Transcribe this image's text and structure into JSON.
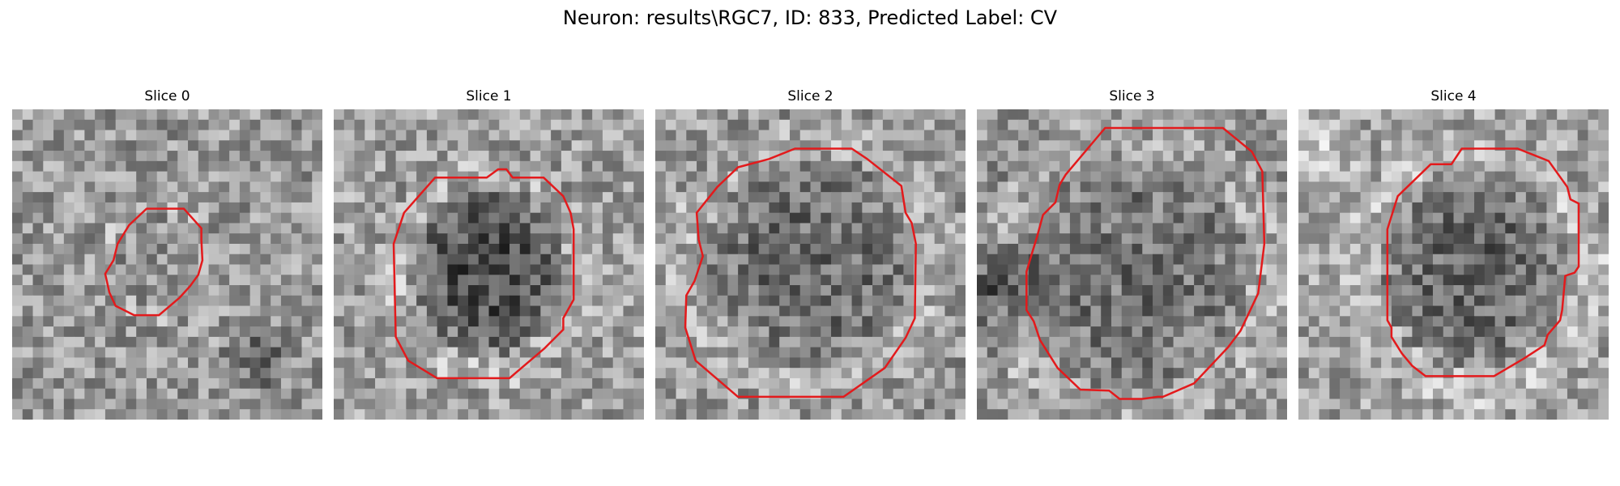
{
  "figure": {
    "title": "Neuron: results\\RGC7, ID: 833, Predicted Label: CV"
  },
  "colors": {
    "contour": "#e31a1c",
    "background": "#ffffff"
  },
  "panels": [
    {
      "label": "Slice 0"
    },
    {
      "label": "Slice 1"
    },
    {
      "label": "Slice 2"
    },
    {
      "label": "Slice 3"
    },
    {
      "label": "Slice 4"
    }
  ]
}
